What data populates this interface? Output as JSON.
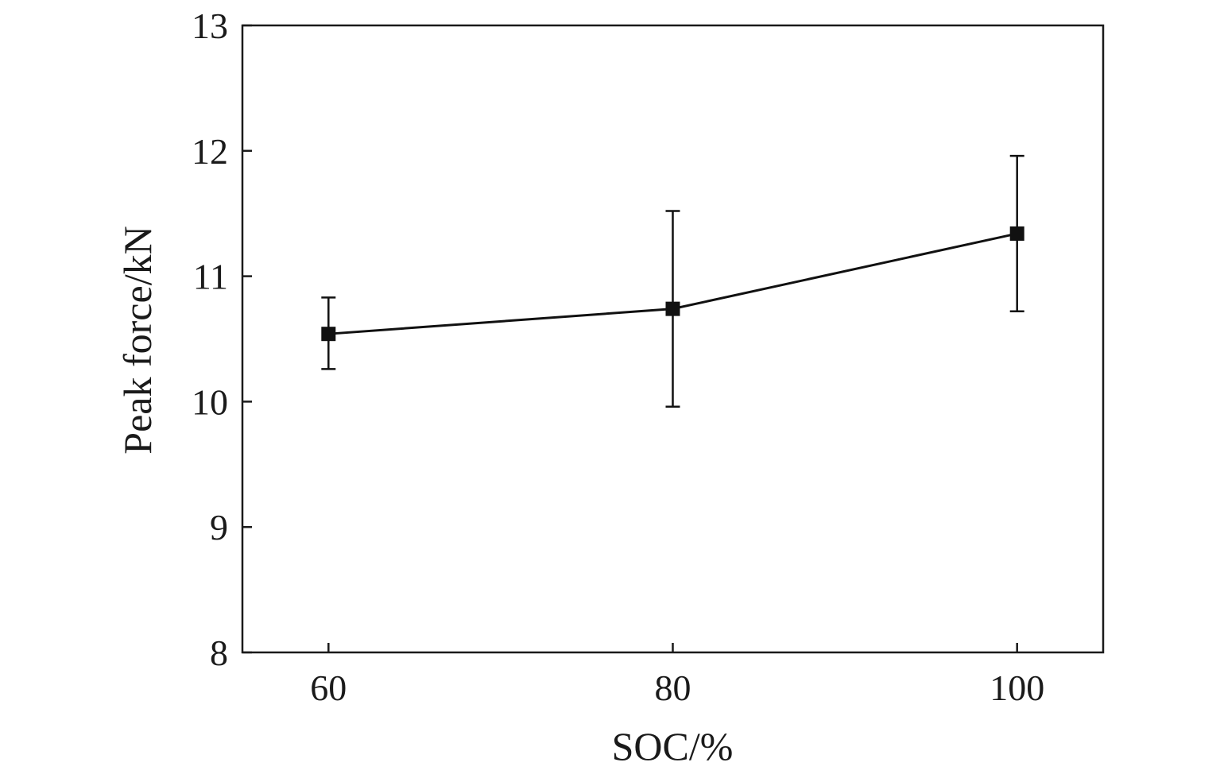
{
  "chart_data": {
    "type": "line",
    "title": "",
    "xlabel": "SOC/%",
    "ylabel": "Peak force/kN",
    "x": [
      60,
      80,
      100
    ],
    "xticks": [
      "60",
      "80",
      "100"
    ],
    "yticks": [
      "8",
      "9",
      "10",
      "11",
      "12",
      "13"
    ],
    "xlim": [
      55,
      105
    ],
    "ylim": [
      8,
      13
    ],
    "grid": false,
    "series": [
      {
        "name": "Peak force",
        "values": [
          10.54,
          10.74,
          11.34
        ],
        "error_low": [
          10.26,
          9.96,
          10.72
        ],
        "error_high": [
          10.83,
          11.52,
          11.96
        ],
        "color": "#111111",
        "marker": "square"
      }
    ]
  }
}
